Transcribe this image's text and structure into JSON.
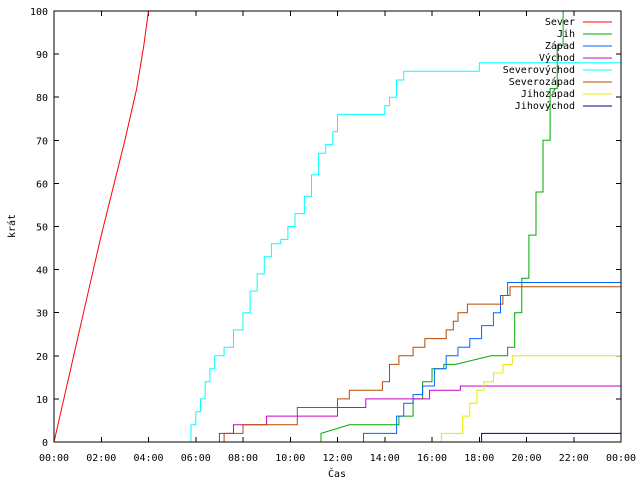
{
  "chart_data": {
    "type": "line",
    "title": "",
    "xlabel": "Čas",
    "ylabel": "krát",
    "xlim": [
      0,
      24
    ],
    "ylim": [
      0,
      100
    ],
    "grid": false,
    "legend_position": "top-right",
    "x_tick_labels": [
      "00:00",
      "02:00",
      "04:00",
      "06:00",
      "08:00",
      "10:00",
      "12:00",
      "14:00",
      "16:00",
      "18:00",
      "20:00",
      "22:00",
      "00:00"
    ],
    "y_tick_labels": [
      "0",
      "10",
      "20",
      "30",
      "40",
      "50",
      "60",
      "70",
      "80",
      "90",
      "100"
    ],
    "series": [
      {
        "name": "Sever",
        "color": "#ff0000",
        "points": [
          [
            0,
            0
          ],
          [
            0.5,
            12
          ],
          [
            1,
            24
          ],
          [
            1.5,
            36
          ],
          [
            2,
            48
          ],
          [
            2.5,
            59
          ],
          [
            3,
            70
          ],
          [
            3.5,
            82
          ],
          [
            3.8,
            92
          ],
          [
            4,
            100
          ]
        ]
      },
      {
        "name": "Jih",
        "color": "#00aa00",
        "points": [
          [
            0,
            0
          ],
          [
            11.1,
            0
          ],
          [
            11.3,
            2
          ],
          [
            12.5,
            4
          ],
          [
            14.3,
            4
          ],
          [
            14.6,
            6
          ],
          [
            15.2,
            10
          ],
          [
            15.6,
            14
          ],
          [
            16,
            17
          ],
          [
            16.5,
            18
          ],
          [
            17,
            18
          ],
          [
            18.5,
            20
          ],
          [
            19.2,
            22
          ],
          [
            19.5,
            30
          ],
          [
            19.8,
            38
          ],
          [
            20.1,
            48
          ],
          [
            20.4,
            58
          ],
          [
            20.7,
            70
          ],
          [
            21,
            82
          ],
          [
            21.3,
            92
          ],
          [
            21.55,
            100
          ]
        ]
      },
      {
        "name": "Západ",
        "color": "#0066ff",
        "points": [
          [
            0,
            0
          ],
          [
            12.9,
            0
          ],
          [
            13.1,
            2
          ],
          [
            14.3,
            2
          ],
          [
            14.5,
            6
          ],
          [
            14.8,
            9
          ],
          [
            15.2,
            11
          ],
          [
            15.6,
            13
          ],
          [
            16.1,
            17
          ],
          [
            16.6,
            20
          ],
          [
            17.1,
            22
          ],
          [
            17.6,
            24
          ],
          [
            18.1,
            27
          ],
          [
            18.6,
            30
          ],
          [
            18.9,
            34
          ],
          [
            19.2,
            37
          ],
          [
            24,
            37
          ]
        ]
      },
      {
        "name": "Východ",
        "color": "#cc00cc",
        "points": [
          [
            0,
            0
          ],
          [
            6.9,
            0
          ],
          [
            7,
            2
          ],
          [
            7.6,
            4
          ],
          [
            8.9,
            4
          ],
          [
            9,
            6
          ],
          [
            11.6,
            6
          ],
          [
            12,
            8
          ],
          [
            12.6,
            8
          ],
          [
            13.2,
            10
          ],
          [
            15.2,
            10
          ],
          [
            15.9,
            12
          ],
          [
            16.9,
            12
          ],
          [
            17.2,
            13
          ],
          [
            24,
            13
          ]
        ]
      },
      {
        "name": "Severovýchod",
        "color": "#00ffff",
        "points": [
          [
            0,
            0
          ],
          [
            5.6,
            0
          ],
          [
            5.8,
            4
          ],
          [
            6.0,
            7
          ],
          [
            6.2,
            10
          ],
          [
            6.4,
            14
          ],
          [
            6.6,
            17
          ],
          [
            6.8,
            20
          ],
          [
            7.2,
            22
          ],
          [
            7.6,
            26
          ],
          [
            8.0,
            30
          ],
          [
            8.3,
            35
          ],
          [
            8.6,
            39
          ],
          [
            8.9,
            43
          ],
          [
            9.2,
            46
          ],
          [
            9.6,
            47
          ],
          [
            9.9,
            50
          ],
          [
            10.2,
            53
          ],
          [
            10.6,
            57
          ],
          [
            10.9,
            62
          ],
          [
            11.2,
            67
          ],
          [
            11.5,
            69
          ],
          [
            11.8,
            72
          ],
          [
            12.0,
            76
          ],
          [
            12.4,
            76
          ],
          [
            13.8,
            76
          ],
          [
            14.0,
            78
          ],
          [
            14.2,
            80
          ],
          [
            14.5,
            84
          ],
          [
            14.8,
            86
          ],
          [
            17.8,
            86
          ],
          [
            18.0,
            88
          ],
          [
            24,
            88
          ]
        ]
      },
      {
        "name": "Severozápad",
        "color": "#b84a00",
        "points": [
          [
            0,
            0
          ],
          [
            7.0,
            0
          ],
          [
            7.2,
            2
          ],
          [
            8.0,
            4
          ],
          [
            10.0,
            4
          ],
          [
            10.3,
            8
          ],
          [
            11.5,
            8
          ],
          [
            12.0,
            10
          ],
          [
            12.5,
            12
          ],
          [
            13.5,
            12
          ],
          [
            13.9,
            14
          ],
          [
            14.2,
            18
          ],
          [
            14.6,
            20
          ],
          [
            15.2,
            22
          ],
          [
            15.7,
            24
          ],
          [
            16.4,
            24
          ],
          [
            16.6,
            26
          ],
          [
            16.9,
            28
          ],
          [
            17.1,
            30
          ],
          [
            17.5,
            32
          ],
          [
            18.4,
            32
          ],
          [
            19.0,
            34
          ],
          [
            19.3,
            36
          ],
          [
            24,
            36
          ]
        ]
      },
      {
        "name": "Jihozápad",
        "color": "#e8e800",
        "points": [
          [
            0,
            0
          ],
          [
            16.1,
            0
          ],
          [
            16.4,
            2
          ],
          [
            17.0,
            2
          ],
          [
            17.3,
            6
          ],
          [
            17.6,
            9
          ],
          [
            17.9,
            12
          ],
          [
            18.2,
            14
          ],
          [
            18.6,
            16
          ],
          [
            19.0,
            18
          ],
          [
            19.4,
            20
          ],
          [
            24,
            20
          ]
        ]
      },
      {
        "name": "Jihovýchod",
        "color": "#000088",
        "points": [
          [
            0,
            0
          ],
          [
            18.0,
            0
          ],
          [
            18.1,
            2
          ],
          [
            24,
            2
          ]
        ]
      }
    ]
  }
}
